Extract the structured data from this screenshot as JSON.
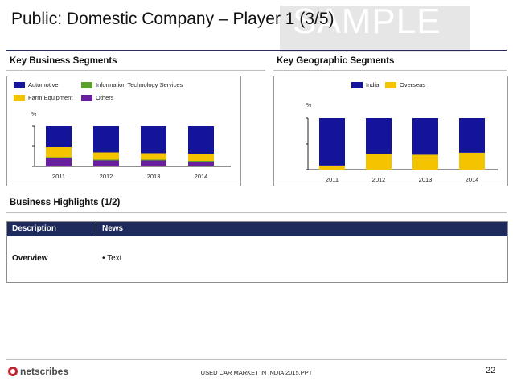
{
  "header": {
    "title": "Public: Domestic Company – Player 1 (3/5)",
    "watermark": "SAMPLE"
  },
  "business_segments": {
    "heading": "Key Business Segments",
    "unit_label": "%",
    "legend": [
      {
        "label": "Automotive",
        "color": "#14149a"
      },
      {
        "label": "Information Technology Services",
        "color": "#5aa02c"
      },
      {
        "label": "Farm Equipment",
        "color": "#f5c400"
      },
      {
        "label": "Others",
        "color": "#6a1fa0"
      }
    ]
  },
  "geographic_segments": {
    "heading": "Key Geographic Segments",
    "unit_label": "%",
    "legend": [
      {
        "label": "India",
        "color": "#14149a"
      },
      {
        "label": "Overseas",
        "color": "#f5c400"
      }
    ]
  },
  "chart_data": [
    {
      "type": "bar",
      "stacked": true,
      "categories": [
        "2011",
        "2012",
        "2013",
        "2014"
      ],
      "ylim": [
        0,
        100
      ],
      "series": [
        {
          "name": "Others",
          "values": [
            20,
            15,
            15,
            12
          ],
          "color": "#6a1fa0"
        },
        {
          "name": "Information Technology Services",
          "values": [
            3,
            2,
            2,
            2
          ],
          "color": "#5aa02c"
        },
        {
          "name": "Farm Equipment",
          "values": [
            25,
            18,
            16,
            18
          ],
          "color": "#f5c400"
        },
        {
          "name": "Automotive",
          "values": [
            52,
            65,
            67,
            68
          ],
          "color": "#14149a"
        }
      ]
    },
    {
      "type": "bar",
      "stacked": true,
      "categories": [
        "2011",
        "2012",
        "2013",
        "2014"
      ],
      "ylim": [
        0,
        100
      ],
      "series": [
        {
          "name": "Overseas",
          "values": [
            8,
            30,
            29,
            33
          ],
          "color": "#f5c400"
        },
        {
          "name": "India",
          "values": [
            92,
            70,
            71,
            67
          ],
          "color": "#14149a"
        }
      ]
    }
  ],
  "highlights": {
    "heading": "Business Highlights (1/2)",
    "columns": [
      "Description",
      "News"
    ],
    "rows": [
      {
        "description": "Overview",
        "news": "• Text"
      }
    ]
  },
  "footer": {
    "logo_text": "netscribes",
    "center_text": "USED CAR MARKET IN INDIA 2015.PPT",
    "page_number": "22"
  }
}
